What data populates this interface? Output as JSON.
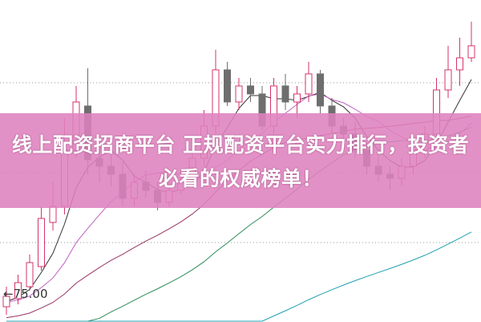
{
  "chart_data": {
    "type": "candlestick",
    "title": "",
    "price_marker": "75.00",
    "colors": {
      "up": "#d6336c",
      "down": "#6e6e6e",
      "ma5": "#333333",
      "ma10": "#c060c0",
      "ma20": "#993366",
      "ma30": "#2e8b57",
      "ma60": "#20a0b0",
      "grid": "#999999"
    },
    "candles": [
      [
        73.5,
        74.8,
        76,
        72.5
      ],
      [
        74.5,
        76.5,
        77.5,
        73.8
      ],
      [
        76,
        79,
        80,
        75.5
      ],
      [
        78.5,
        84.5,
        86,
        78
      ],
      [
        84,
        86,
        89,
        83
      ],
      [
        86,
        93,
        97,
        85
      ],
      [
        93,
        99,
        101,
        92
      ],
      [
        98.5,
        91.8,
        103.2,
        90
      ],
      [
        92,
        91,
        93.5,
        89
      ],
      [
        91,
        90,
        93,
        88.5
      ],
      [
        90,
        87,
        91.5,
        86
      ],
      [
        87,
        89,
        90,
        86
      ],
      [
        89,
        88,
        90.5,
        87
      ],
      [
        88,
        86.5,
        89,
        85.5
      ],
      [
        86.5,
        88,
        89,
        86
      ],
      [
        88,
        89,
        90.5,
        87.5
      ],
      [
        89,
        92,
        93,
        88.5
      ],
      [
        92,
        96,
        98,
        91
      ],
      [
        96,
        103,
        105.5,
        95
      ],
      [
        103,
        99,
        104,
        98.5
      ],
      [
        99,
        101,
        102,
        98
      ],
      [
        101,
        100,
        102,
        99
      ],
      [
        100,
        96,
        101,
        95.5
      ],
      [
        96,
        101,
        102,
        95
      ],
      [
        101,
        99,
        102.5,
        98
      ],
      [
        99,
        100,
        101,
        97
      ],
      [
        100,
        102.5,
        104,
        99
      ],
      [
        102.5,
        98.5,
        103,
        97.5
      ],
      [
        98.5,
        96,
        99.5,
        95
      ],
      [
        96,
        95,
        97,
        94
      ],
      [
        95,
        93,
        96.5,
        92
      ],
      [
        93,
        91,
        94,
        90
      ],
      [
        91,
        90,
        92.5,
        89
      ],
      [
        90,
        89.5,
        91,
        88
      ],
      [
        89.5,
        91,
        92,
        88.5
      ],
      [
        91,
        93,
        94,
        90
      ],
      [
        93,
        95,
        96,
        92
      ],
      [
        95,
        100.5,
        102,
        94.5
      ],
      [
        100.5,
        103,
        106,
        99.5
      ],
      [
        103,
        104.5,
        107,
        101
      ],
      [
        104.5,
        106,
        109,
        104
      ]
    ],
    "candle_fields": [
      "open",
      "close",
      "high",
      "low"
    ]
  },
  "banner": {
    "line1": "线上配资招商平台 正规配资平台实力排行，投资者",
    "line2": "必看的权威榜单！",
    "color": "#de82be"
  }
}
